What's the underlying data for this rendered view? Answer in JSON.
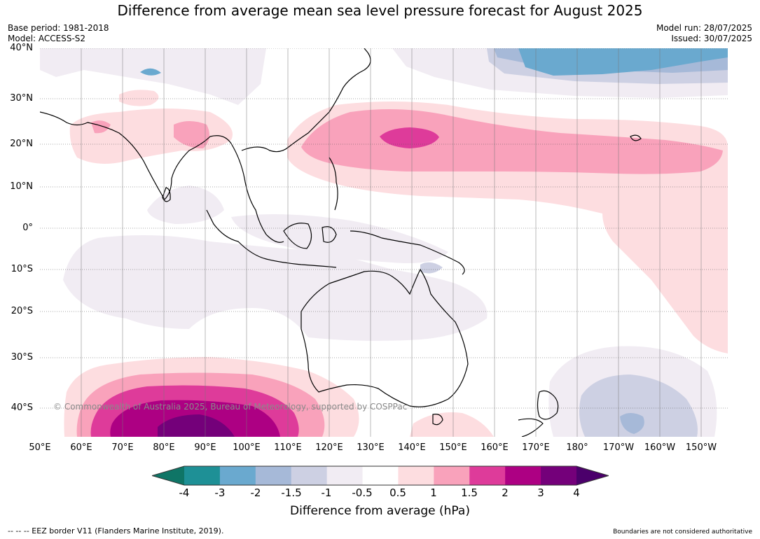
{
  "title": "Difference from average mean sea level pressure forecast for August 2025",
  "meta_left": [
    "Base period: 1981-2018",
    "Model: ACCESS-S2"
  ],
  "meta_right": [
    "Model run: 28/07/2025",
    "Issued: 30/07/2025"
  ],
  "lat_labels": [
    "40°N",
    "30°N",
    "20°N",
    "10°N",
    "0°",
    "10°S",
    "20°S",
    "30°S",
    "40°S"
  ],
  "lon_labels": [
    "50°E",
    "60°E",
    "70°E",
    "80°E",
    "90°E",
    "100°E",
    "110°E",
    "120°E",
    "130°E",
    "140°E",
    "150°E",
    "160°E",
    "170°E",
    "180°",
    "170°W",
    "160°W",
    "150°W"
  ],
  "copyright": "© Commonwealth of Australia 2025, Bureau of Meteorology, supported by COSPPac",
  "colorbar": {
    "ticks": [
      "-4",
      "-3",
      "-2",
      "-1.5",
      "-1",
      "-0.5",
      "0.5",
      "1",
      "1.5",
      "2",
      "3",
      "4"
    ],
    "colors": [
      "#0f7566",
      "#1e9096",
      "#6aa9cf",
      "#a6b9d8",
      "#cdd0e3",
      "#f1ecf3",
      "#ffffff",
      "#fddde0",
      "#f9a2bb",
      "#de3b9a",
      "#ad0083",
      "#74007a",
      "#4b006b"
    ],
    "label": "Difference from average (hPa)"
  },
  "eez_note": "-- -- -- EEZ border V11 (Flanders Marine Institute, 2019).",
  "boundary_note": "Boundaries are not considered authoritative"
}
